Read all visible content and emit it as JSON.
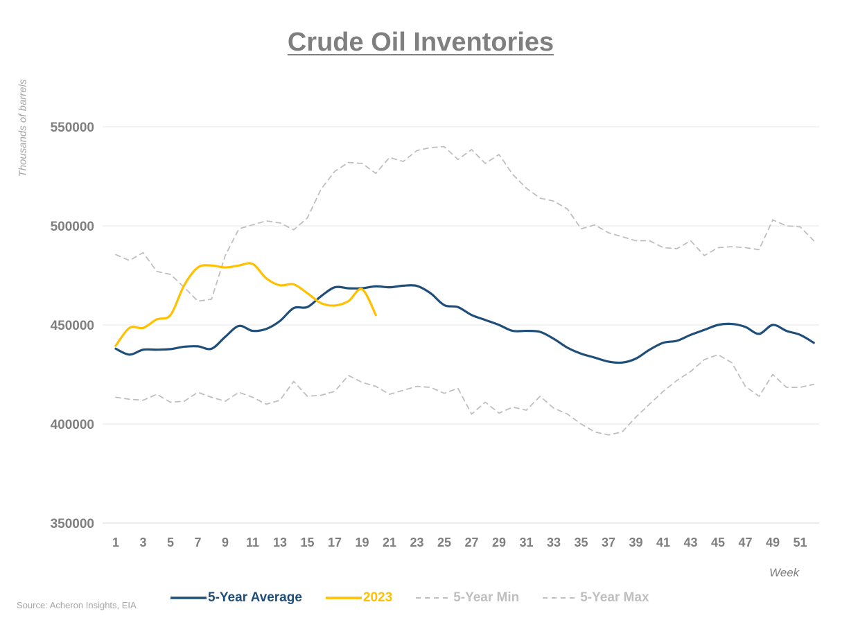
{
  "chart_data": {
    "type": "line",
    "title": "Crude Oil Inventories",
    "ylabel": "Thousands of barrels",
    "xlabel": "Week",
    "source": "Source: Acheron Insights, EIA",
    "ylim": [
      350000,
      550000
    ],
    "yticks": [
      350000,
      400000,
      450000,
      500000,
      550000
    ],
    "xlim": [
      1,
      52
    ],
    "xticks": [
      1,
      3,
      5,
      7,
      9,
      11,
      13,
      15,
      17,
      19,
      21,
      23,
      25,
      27,
      29,
      31,
      33,
      35,
      37,
      39,
      41,
      43,
      45,
      47,
      49,
      51
    ],
    "grid": true,
    "legend_position": "bottom",
    "series": [
      {
        "name": "5-Year Average",
        "color": "#1f4e79",
        "style": "solid",
        "x": [
          1,
          2,
          3,
          4,
          5,
          6,
          7,
          8,
          9,
          10,
          11,
          12,
          13,
          14,
          15,
          16,
          17,
          18,
          19,
          20,
          21,
          22,
          23,
          24,
          25,
          26,
          27,
          28,
          29,
          30,
          31,
          32,
          33,
          34,
          35,
          36,
          37,
          38,
          39,
          40,
          41,
          42,
          43,
          44,
          45,
          46,
          47,
          48,
          49,
          50,
          51,
          52
        ],
        "values": [
          438000,
          435000,
          437500,
          437500,
          437800,
          439000,
          439200,
          438000,
          444000,
          449500,
          447000,
          448000,
          452000,
          458500,
          459000,
          464500,
          469000,
          468500,
          468500,
          469500,
          469000,
          469800,
          469700,
          466000,
          460000,
          459000,
          455000,
          452500,
          450000,
          447000,
          447000,
          446500,
          443000,
          438500,
          435500,
          433500,
          431500,
          431000,
          433000,
          437500,
          441000,
          442000,
          445000,
          447500,
          450000,
          450500,
          449000,
          445500,
          450000,
          447000,
          445000,
          441000
        ]
      },
      {
        "name": "2023",
        "color": "#ffc000",
        "style": "solid",
        "x": [
          1,
          2,
          3,
          4,
          5,
          6,
          7,
          8,
          9,
          10,
          11,
          12,
          13,
          14,
          15,
          16,
          17,
          18,
          19,
          20
        ],
        "values": [
          439500,
          448500,
          448500,
          452800,
          455000,
          470000,
          479000,
          480000,
          479000,
          480000,
          480800,
          473500,
          470000,
          470500,
          466000,
          461000,
          459800,
          462000,
          468000,
          455000
        ]
      },
      {
        "name": "5-Year Min",
        "color": "#bfbfbf",
        "style": "dashed",
        "x": [
          1,
          2,
          3,
          4,
          5,
          6,
          7,
          8,
          9,
          10,
          11,
          12,
          13,
          14,
          15,
          16,
          17,
          18,
          19,
          20,
          21,
          22,
          23,
          24,
          25,
          26,
          27,
          28,
          29,
          30,
          31,
          32,
          33,
          34,
          35,
          36,
          37,
          38,
          39,
          40,
          41,
          42,
          43,
          44,
          45,
          46,
          47,
          48,
          49,
          50,
          51,
          52
        ],
        "values": [
          413500,
          412500,
          412000,
          415000,
          411000,
          411500,
          416000,
          413500,
          411500,
          416000,
          413500,
          410000,
          412000,
          421500,
          414000,
          414500,
          416500,
          424500,
          421000,
          419000,
          415000,
          417000,
          419000,
          418500,
          415500,
          418000,
          405000,
          411000,
          405500,
          408500,
          407000,
          414000,
          408000,
          405000,
          400000,
          396000,
          394500,
          396000,
          403500,
          410000,
          416500,
          422000,
          426500,
          432500,
          435000,
          431000,
          419000,
          414000,
          425000,
          418500,
          418500,
          420000
        ]
      },
      {
        "name": "5-Year Max",
        "color": "#bfbfbf",
        "style": "dashed",
        "x": [
          1,
          2,
          3,
          4,
          5,
          6,
          7,
          8,
          9,
          10,
          11,
          12,
          13,
          14,
          15,
          16,
          17,
          18,
          19,
          20,
          21,
          22,
          23,
          24,
          25,
          26,
          27,
          28,
          29,
          30,
          31,
          32,
          33,
          34,
          35,
          36,
          37,
          38,
          39,
          40,
          41,
          42,
          43,
          44,
          45,
          46,
          47,
          48,
          49,
          50,
          51,
          52
        ],
        "values": [
          485500,
          482500,
          486500,
          477000,
          475500,
          469000,
          462000,
          463000,
          485000,
          498500,
          500500,
          502500,
          501500,
          498000,
          504000,
          518500,
          527500,
          532000,
          531500,
          526500,
          534500,
          532500,
          538000,
          539500,
          540000,
          533500,
          538500,
          531500,
          536000,
          526000,
          519000,
          514000,
          512500,
          508500,
          498500,
          500500,
          496500,
          494500,
          492500,
          492500,
          489000,
          488500,
          492500,
          485000,
          489000,
          489500,
          489000,
          488000,
          503000,
          500000,
          499500,
          492500
        ]
      }
    ]
  }
}
